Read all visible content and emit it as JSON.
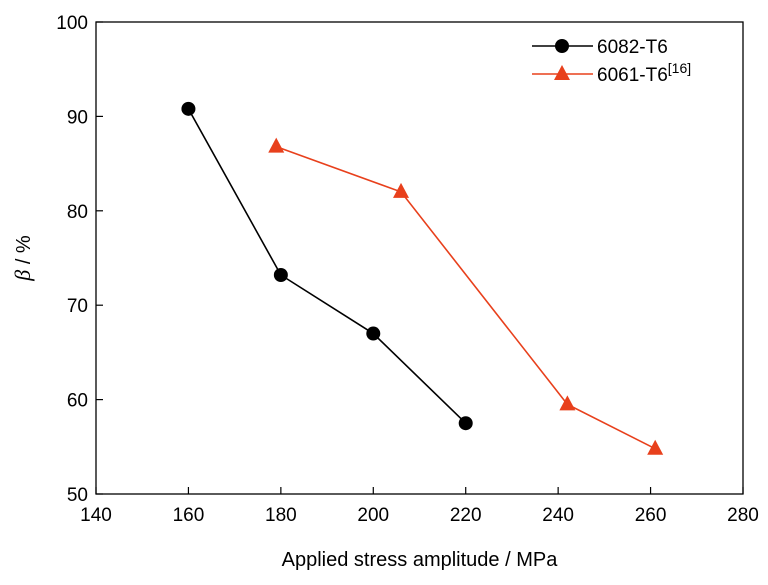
{
  "chart_data": {
    "type": "line",
    "title": "",
    "xlabel": "Applied stress amplitude / MPa",
    "ylabel_symbol": "β",
    "ylabel_unit": " / %",
    "xlim": [
      140,
      280
    ],
    "ylim": [
      50,
      100
    ],
    "xticks": [
      140,
      160,
      180,
      200,
      220,
      240,
      260,
      280
    ],
    "yticks": [
      50,
      60,
      70,
      80,
      90,
      100
    ],
    "grid": false,
    "legend_position": "top-right",
    "series": [
      {
        "name": "6082-T6",
        "name_superscript": "",
        "color": "#000000",
        "marker": "circle",
        "x": [
          160,
          180,
          200,
          220
        ],
        "y": [
          90.8,
          73.2,
          67.0,
          57.5
        ]
      },
      {
        "name": "6061-T6",
        "name_superscript": "[16]",
        "color": "#e8401c",
        "marker": "triangle",
        "x": [
          179,
          206,
          242,
          261
        ],
        "y": [
          86.8,
          82.0,
          59.5,
          54.8
        ]
      }
    ]
  }
}
